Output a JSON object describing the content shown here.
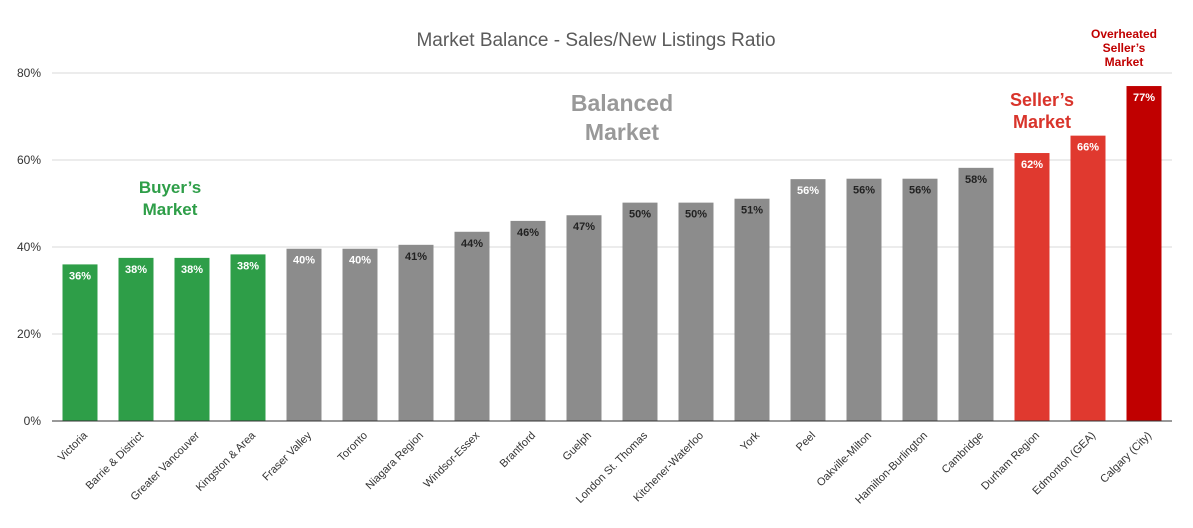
{
  "chart_data": {
    "type": "bar",
    "title": "Market Balance - Sales/New Listings Ratio",
    "xlabel": "",
    "ylabel": "",
    "ylim": [
      0,
      80
    ],
    "yticks": [
      0,
      20,
      40,
      60,
      80
    ],
    "ytick_labels": [
      "0%",
      "20%",
      "40%",
      "60%",
      "80%"
    ],
    "grid": true,
    "categories": [
      "Victoria",
      "Barrie & District",
      "Greater Vancouver",
      "Kingston & Area",
      "Fraser Valley",
      "Toronto",
      "Niagara Region",
      "Windsor-Essex",
      "Brantford",
      "Guelph",
      "London St. Thomas",
      "Kitchener-Waterloo",
      "York",
      "Peel",
      "Oakville-Milton",
      "Hamilton-Burlington",
      "Cambridge",
      "Durham Region",
      "Edmonton (GEA)",
      "Calgary (City)"
    ],
    "values": [
      36,
      37.5,
      37.5,
      38.3,
      39.6,
      39.6,
      40.5,
      43.5,
      46,
      47.3,
      50.2,
      50.2,
      51.1,
      55.6,
      55.7,
      55.7,
      58.2,
      61.6,
      65.6,
      77
    ],
    "data_labels": [
      "36%",
      "38%",
      "38%",
      "38%",
      "40%",
      "40%",
      "41%",
      "44%",
      "46%",
      "47%",
      "50%",
      "50%",
      "51%",
      "56%",
      "56%",
      "56%",
      "58%",
      "62%",
      "66%",
      "77%"
    ],
    "bar_colors": [
      "#2e9e48",
      "#2e9e48",
      "#2e9e48",
      "#2e9e48",
      "#8c8c8c",
      "#8c8c8c",
      "#8c8c8c",
      "#8c8c8c",
      "#8c8c8c",
      "#8c8c8c",
      "#8c8c8c",
      "#8c8c8c",
      "#8c8c8c",
      "#8c8c8c",
      "#8c8c8c",
      "#8c8c8c",
      "#8c8c8c",
      "#e0392f",
      "#e0392f",
      "#c00000"
    ],
    "label_colors": [
      "#ffffff",
      "#ffffff",
      "#ffffff",
      "#ffffff",
      "#ffffff",
      "#ffffff",
      "#222222",
      "#222222",
      "#222222",
      "#222222",
      "#222222",
      "#222222",
      "#222222",
      "#ffffff",
      "#222222",
      "#222222",
      "#222222",
      "#ffffff",
      "#ffffff",
      "#ffffff"
    ],
    "annotations": [
      {
        "lines": [
          "Buyer’s",
          "Market"
        ],
        "color": "#2e9e48"
      },
      {
        "lines": [
          "Balanced",
          "Market"
        ],
        "color": "#999999"
      },
      {
        "lines": [
          "Seller’s",
          "Market"
        ],
        "color": "#d9342b"
      },
      {
        "lines": [
          "Overheated",
          "Seller’s",
          "Market"
        ],
        "color": "#c00000"
      }
    ]
  }
}
